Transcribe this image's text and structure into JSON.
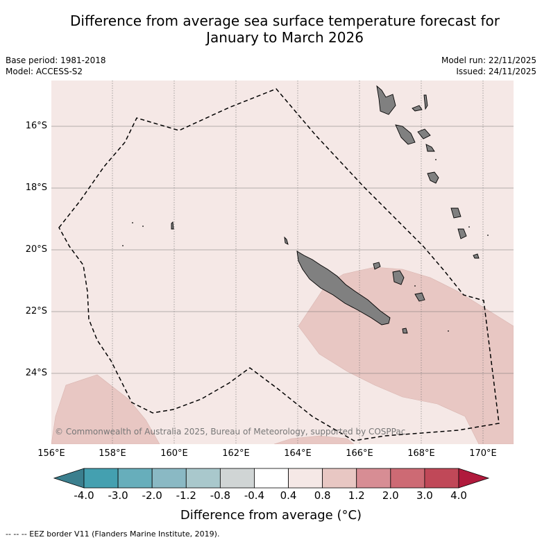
{
  "title": {
    "line1": "Difference from average sea surface temperature forecast for",
    "line2": "January to March 2026"
  },
  "meta": {
    "base_period": "Base period: 1981-2018",
    "model": "Model: ACCESS-S2",
    "model_run": "Model run: 22/11/2025",
    "issued": "Issued: 24/11/2025"
  },
  "axes": {
    "lat_labels": [
      "16°S",
      "18°S",
      "20°S",
      "22°S",
      "24°S"
    ],
    "lon_labels": [
      "156°E",
      "158°E",
      "160°E",
      "162°E",
      "164°E",
      "166°E",
      "168°E",
      "170°E"
    ]
  },
  "copyright": "© Commonwealth of Australia 2025, Bureau of Meteorology, supported by COSPPac",
  "colorbar": {
    "title": "Difference from average (°C)",
    "ticks": [
      "-4.0",
      "-3.0",
      "-2.0",
      "-1.2",
      "-0.8",
      "-0.4",
      "0.4",
      "0.8",
      "1.2",
      "2.0",
      "3.0",
      "4.0"
    ],
    "colors": {
      "below": "#3b7f8e",
      "bins": [
        "#44a0b0",
        "#67aebb",
        "#8ab9c4",
        "#a9c8cc",
        "#d0d5d5",
        "#ffffff",
        "#f5e8e6",
        "#e8c7c3",
        "#d78d94",
        "#cd6a74",
        "#c04858"
      ],
      "above": "#b01a3c"
    }
  },
  "map": {
    "ocean_color": "#f5e8e6",
    "warm_color": "#e8c7c3",
    "land_color": "#808080"
  },
  "footer": "--  --  -- EEZ border V11 (Flanders Marine Institute, 2019)."
}
